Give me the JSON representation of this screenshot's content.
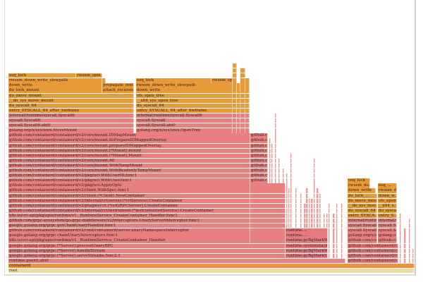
{
  "colors": {
    "kernel": "#e69b38",
    "user": "#e88080",
    "gc": "#e57b80",
    "containerd": "#ea9240",
    "root": "#f3d9a4",
    "sliver": "#eb9a9a"
  },
  "stacks": {
    "main": [
      "root",
      "containerd",
      "runtime.goexit.abi0",
      "google.golang.org/grpc.(*Server).serveStreams.func2.1",
      "google.golang.org/grpc.(*Server).handleStream",
      "google.golang.org/grpc.(*Server).processUnaryRPC",
      "k8s.io/cri-api/pkg/apis/runtime/v1._RuntimeService_CreateContainer_Handler",
      "google.golang.org/grpc.chainUnaryInterceptors.func1",
      "github.com/containerd/containerd/v2/cmd/containerd/server.unaryNamespaceInterceptor",
      "google.golang.org/grpc.getChainUnaryHandler.func1",
      "github.com/grpc-ecosystem/go-grpc-middleware/v2/interceptors.UnaryServerInterceptor.func1",
      "k8s.io/cri-api/pkg/apis/runtime/v1._RuntimeService_CreateContainer_Handler.func1",
      "github.com/containerd/containerd/v2/internal/cri/instrument.(*instrumentedService).CreateContainer",
      "github.com/containerd/containerd/v2/plugins/cri.(*criGRPCServer).CreateContainer",
      "github.com/containerd/containerd/v2/internal/cri/server.(*criService).CreateContainer",
      "github.com/containerd/containerd/v2/client.(*Client).NewContainer",
      "github.com/containerd/containerd/v2/client.WithSpec.func1",
      "github.com/containerd/containerd/v2/pkg/oci.ApplyOpts",
      "github.com/containerd/containerd/v2/pkg/oci.WithUser.func1",
      "github.com/containerd/containerd/v2/pkg/oci.WithUserID.func1",
      "github.com/containerd/containerd/v2/core/mount.WithReadonlyTempMount",
      "github.com/containerd/containerd/v2/core/mount.WithTempMount",
      "github.com/containerd/containerd/v2/core/mount.All",
      "github.com/containerd/containerd/v2/core/mount.(*Mount).Mount",
      "github.com/containerd/containerd/v2/core/mount.(*Mount).mount",
      "github.com/containerd/containerd/v2/core/mount.prepareIDMappedOverlay",
      "github.com/containerd/containerd/v2/core/mount.doPrepareIDMappedOverlay",
      "github.com/containerd/containerd/v2/core/mount.IDMapMount",
      "golang.org/x/sys/unix.MoveMount",
      "syscall.Syscall6.abi0",
      "syscall.Syscall6",
      "internal/runtime/syscall.Syscall6",
      "entry_SYSCALL_64_after_hwframe",
      "do_syscall_64",
      "__do_sys_move_mount",
      "do_move_mount",
      "do_lock_mount",
      "down_write",
      "rwsem_down_write_slowpath",
      "osq_lock"
    ],
    "main_side": {
      "attach": "attach_recursive_...",
      "propagate": "propagate_mnt",
      "rwsem_spin": "rwsem_spin...",
      "github_short": "github.co..."
    },
    "open_tree": [
      "golang.org/x/sys/unix.OpenTree",
      "syscall.Syscall.abi0",
      "syscall.Syscall",
      "internal/runtime/syscall.Syscall6",
      "entry_SYSCALL_64_after_hwframe",
      "do_syscall_64",
      "__x64_sys_open_tree",
      "vfs_open_tree",
      "down_write",
      "rwsem_down_write_slowpath",
      "osq_lock"
    ],
    "open_tree_spin": "rwsem_spin...",
    "gc": [
      "runtime.gcBgMarkStar...",
      "runtime.gcBgMarkWo...",
      "runtime.systemstack...",
      "runtime.gcBgMarkW...",
      "runtime....",
      "runtime...."
    ],
    "right_a": [
      "github.com/containerd/containe...",
      "github.com/containerd/containe...",
      "github.com/containerd/containe...",
      "github.com/containerd/containe...",
      "github.com/containerd/containe...",
      "golang.org/x/sy...",
      "syscall.Syscall...",
      "syscall.Syscall6",
      "internal/runtim...",
      "entry_SYSCA...",
      "do_syscall_64",
      "__do_sys_mov...",
      "do_move_mount",
      "do_lock_...",
      "down_write",
      "rwsem_do...",
      "osq_lock"
    ],
    "right_b": [
      "github.com...",
      "golang.o...",
      "syscall.S...",
      "syscall.S...",
      "internal/r...",
      "entry_S...",
      "do_sysca...",
      "__x64_s...",
      "vfs_open...",
      "down_w...",
      "rwsem_d...",
      "osq_..."
    ]
  }
}
